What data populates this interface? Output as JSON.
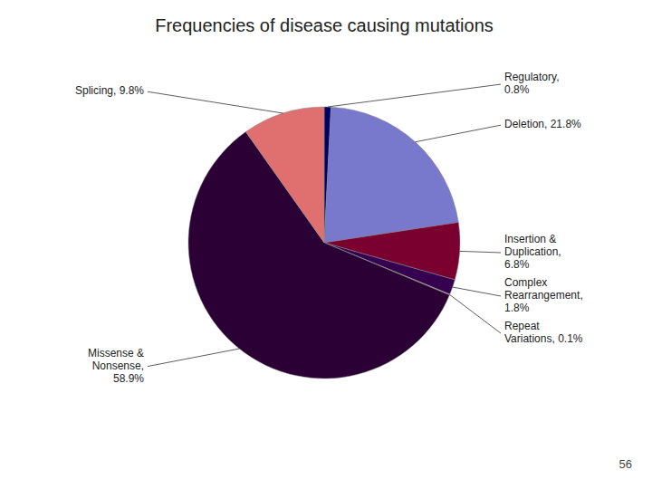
{
  "chart_data": {
    "type": "pie",
    "title": "Frequencies of disease causing mutations",
    "values": [
      0.8,
      21.8,
      6.8,
      1.8,
      0.1,
      58.9,
      9.8
    ],
    "value_labels": [
      "Regulatory,\n0.8%",
      "Deletion, 21.8%",
      "Insertion &\nDuplication,\n6.8%",
      "Complex\nRearrangement,\n1.8%",
      "Repeat\nVariations, 0.1%",
      "Missense &\nNonsense,\n58.9%",
      "Splicing, 9.8%"
    ],
    "colors": [
      "#000060",
      "#7878CC",
      "#7A0030",
      "#350050",
      "#D4C070",
      "#2A0035",
      "#E07070"
    ],
    "data_labels": true,
    "annotations": [
      "56"
    ]
  }
}
